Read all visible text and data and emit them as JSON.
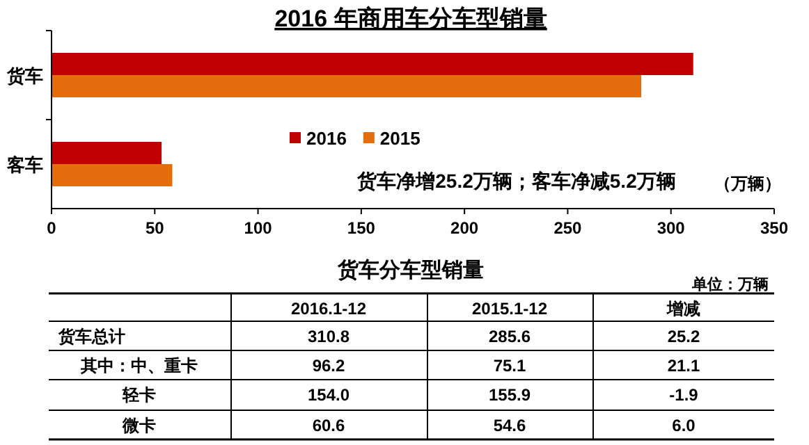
{
  "chart_data": [
    {
      "type": "bar",
      "orientation": "horizontal",
      "title": "2016 年商用车分车型销量",
      "xlabel": "（万辆）",
      "categories": [
        "货车",
        "客车"
      ],
      "series": [
        {
          "name": "2016",
          "color": "#c00000",
          "values": [
            310.8,
            53.3
          ]
        },
        {
          "name": "2015",
          "color": "#e46c0a",
          "values": [
            285.6,
            58.5
          ]
        }
      ],
      "xlim": [
        0,
        350
      ],
      "xticks": [
        0,
        50,
        100,
        150,
        200,
        250,
        300,
        350
      ],
      "legend": "center",
      "grid": false,
      "annotations": [
        "货车净增25.2万辆；客车净减5.2万辆"
      ]
    },
    {
      "type": "other",
      "title": "货车分车型销量",
      "categories": [
        "货车总计",
        "其中：中、重卡",
        "轻卡",
        "微卡"
      ],
      "series": [
        {
          "name": "2016.1-12",
          "values": [
            310.8,
            96.2,
            154.0,
            60.6
          ],
          "value_labels": [
            "310.8",
            "96.2",
            "154.0",
            "60.6"
          ]
        },
        {
          "name": "2015.1-12",
          "values": [
            285.6,
            75.1,
            155.9,
            54.6
          ],
          "value_labels": [
            "285.6",
            "75.1",
            "155.9",
            "54.6"
          ]
        },
        {
          "name": "增减",
          "values": [
            25.2,
            21.1,
            -1.9,
            6.0
          ],
          "value_labels": [
            "25.2",
            "21.1",
            "-1.9",
            "6.0"
          ]
        }
      ],
      "annotations": [
        "单位：万辆"
      ]
    }
  ]
}
